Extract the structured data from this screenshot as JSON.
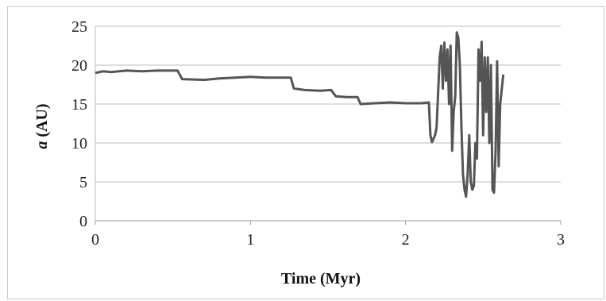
{
  "chart_data": {
    "type": "line",
    "title": "",
    "xlabel": "Time (Myr)",
    "ylabel_var": "a",
    "ylabel_unit": " (AU)",
    "xlim": [
      0,
      3
    ],
    "ylim": [
      0,
      25
    ],
    "xticks": [
      0,
      1,
      2,
      3
    ],
    "yticks": [
      0,
      5,
      10,
      15,
      20,
      25
    ],
    "grid": "horizontal",
    "legend": "none",
    "line_color": "#555555",
    "series": [
      {
        "values": [
          [
            0.0,
            19.0
          ],
          [
            0.05,
            19.2
          ],
          [
            0.1,
            19.1
          ],
          [
            0.2,
            19.3
          ],
          [
            0.3,
            19.2
          ],
          [
            0.4,
            19.3
          ],
          [
            0.53,
            19.3
          ],
          [
            0.56,
            18.2
          ],
          [
            0.7,
            18.1
          ],
          [
            0.8,
            18.3
          ],
          [
            0.9,
            18.4
          ],
          [
            1.0,
            18.5
          ],
          [
            1.1,
            18.4
          ],
          [
            1.26,
            18.4
          ],
          [
            1.28,
            17.0
          ],
          [
            1.35,
            16.8
          ],
          [
            1.45,
            16.7
          ],
          [
            1.52,
            16.8
          ],
          [
            1.55,
            16.0
          ],
          [
            1.62,
            15.9
          ],
          [
            1.69,
            15.9
          ],
          [
            1.71,
            15.0
          ],
          [
            1.8,
            15.1
          ],
          [
            1.9,
            15.2
          ],
          [
            2.0,
            15.1
          ],
          [
            2.1,
            15.1
          ],
          [
            2.15,
            15.2
          ],
          [
            2.16,
            11.0
          ],
          [
            2.17,
            10.1
          ],
          [
            2.19,
            11.0
          ],
          [
            2.2,
            12.0
          ],
          [
            2.22,
            21.0
          ],
          [
            2.23,
            22.5
          ],
          [
            2.24,
            17.0
          ],
          [
            2.25,
            22.9
          ],
          [
            2.26,
            18.0
          ],
          [
            2.27,
            22.0
          ],
          [
            2.28,
            15.0
          ],
          [
            2.29,
            22.5
          ],
          [
            2.3,
            9.0
          ],
          [
            2.31,
            14.0
          ],
          [
            2.32,
            16.0
          ],
          [
            2.33,
            24.2
          ],
          [
            2.34,
            23.5
          ],
          [
            2.35,
            20.0
          ],
          [
            2.36,
            12.0
          ],
          [
            2.37,
            6.0
          ],
          [
            2.38,
            4.0
          ],
          [
            2.39,
            3.1
          ],
          [
            2.4,
            6.0
          ],
          [
            2.41,
            11.0
          ],
          [
            2.42,
            5.0
          ],
          [
            2.43,
            4.0
          ],
          [
            2.44,
            4.5
          ],
          [
            2.45,
            10.0
          ],
          [
            2.46,
            8.0
          ],
          [
            2.47,
            22.0
          ],
          [
            2.48,
            18.0
          ],
          [
            2.49,
            23.0
          ],
          [
            2.5,
            11.0
          ],
          [
            2.51,
            21.0
          ],
          [
            2.52,
            14.0
          ],
          [
            2.53,
            21.0
          ],
          [
            2.54,
            10.0
          ],
          [
            2.55,
            20.0
          ],
          [
            2.56,
            4.0
          ],
          [
            2.57,
            3.6
          ],
          [
            2.58,
            9.0
          ],
          [
            2.59,
            20.5
          ],
          [
            2.6,
            7.0
          ],
          [
            2.61,
            15.0
          ],
          [
            2.63,
            18.8
          ]
        ]
      }
    ]
  }
}
